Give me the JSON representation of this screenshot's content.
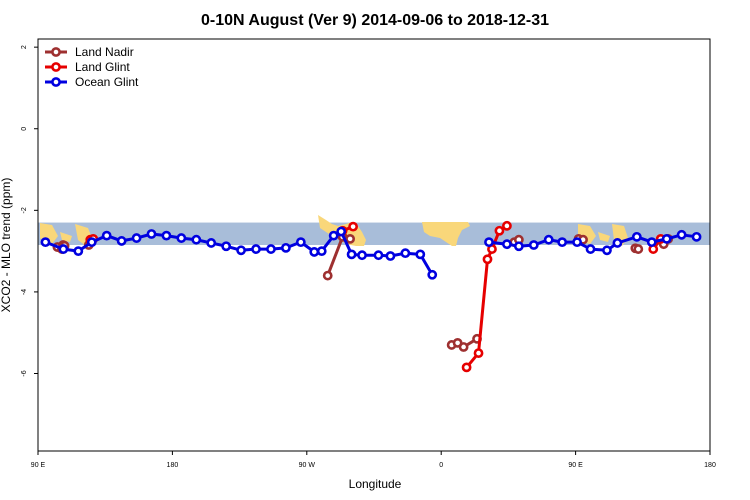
{
  "chart_data": {
    "type": "line",
    "title": "0-10N August (Ver 9)   2014-09-06 to 2018-12-31",
    "xlabel": "Longitude",
    "ylabel": "XCO2 - MLO trend (ppm)",
    "xlim": [
      90,
      540
    ],
    "ylim": [
      -7.9,
      2.2
    ],
    "x_ticks": [
      {
        "value": 90,
        "label": "90 E"
      },
      {
        "value": 180,
        "label": "180"
      },
      {
        "value": 270,
        "label": "90 W"
      },
      {
        "value": 360,
        "label": "0"
      },
      {
        "value": 450,
        "label": "90 E"
      },
      {
        "value": 540,
        "label": "180"
      }
    ],
    "y_ticks": [
      {
        "value": 2,
        "label": "2"
      },
      {
        "value": 0,
        "label": "0"
      },
      {
        "value": -2,
        "label": "-2"
      },
      {
        "value": -4,
        "label": "-4"
      },
      {
        "value": -6,
        "label": "-6"
      }
    ],
    "legend_position": "top-left",
    "background_map_band": {
      "y_top": -2.3,
      "y_bottom": -2.85,
      "ocean_color": "#a8bdd9",
      "land_color": "#f9d77a"
    },
    "series": [
      {
        "name": "Land Nadir",
        "color": "#9e3030",
        "segments": [
          [
            [
              103,
              -2.9
            ],
            [
              106,
              -2.95
            ]
          ],
          [
            [
              124,
              -2.85
            ],
            [
              126,
              -2.72
            ]
          ],
          [
            [
              284,
              -3.6
            ],
            [
              294,
              -2.65
            ],
            [
              299,
              -2.7
            ]
          ],
          [
            [
              106.8,
              -2.85
            ],
            [
              107.8,
              -2.87
            ]
          ],
          [
            [
              375,
              -5.35
            ],
            [
              384,
              -5.15
            ]
          ],
          [
            [
              367,
              -5.3
            ],
            [
              371,
              -5.25
            ]
          ],
          [
            [
              409,
              -2.78
            ],
            [
              412,
              -2.72
            ]
          ],
          [
            [
              452,
              -2.7
            ],
            [
              455,
              -2.72
            ]
          ],
          [
            [
              490,
              -2.93
            ],
            [
              492,
              -2.95
            ]
          ],
          [
            [
              509,
              -2.83
            ],
            [
              512,
              -2.7
            ]
          ]
        ]
      },
      {
        "name": "Land Glint",
        "color": "#e60000",
        "segments": [
          [
            [
              125,
              -2.72
            ],
            [
              127,
              -2.7
            ]
          ],
          [
            [
              294,
              -2.5
            ],
            [
              301,
              -2.4
            ]
          ],
          [
            [
              377,
              -5.85
            ],
            [
              385,
              -5.5
            ],
            [
              391,
              -3.2
            ],
            [
              394,
              -2.95
            ],
            [
              399,
              -2.5
            ],
            [
              404,
              -2.38
            ]
          ],
          [
            [
              502,
              -2.95
            ],
            [
              507,
              -2.7
            ]
          ]
        ]
      },
      {
        "name": "Ocean Glint",
        "color": "#0000e0",
        "segments": [
          [
            [
              95,
              -2.78
            ],
            [
              107,
              -2.95
            ],
            [
              117,
              -3.0
            ],
            [
              126,
              -2.78
            ],
            [
              136,
              -2.62
            ],
            [
              146,
              -2.75
            ],
            [
              156,
              -2.68
            ],
            [
              166,
              -2.58
            ],
            [
              176,
              -2.62
            ],
            [
              186,
              -2.68
            ],
            [
              196,
              -2.72
            ],
            [
              206,
              -2.8
            ],
            [
              216,
              -2.88
            ],
            [
              226,
              -2.98
            ],
            [
              236,
              -2.95
            ],
            [
              246,
              -2.95
            ],
            [
              256,
              -2.92
            ],
            [
              266,
              -2.78
            ],
            [
              275,
              -3.02
            ],
            [
              280,
              -3.0
            ],
            [
              288,
              -2.62
            ],
            [
              293,
              -2.52
            ],
            [
              300,
              -3.08
            ],
            [
              307,
              -3.1
            ],
            [
              318,
              -3.1
            ],
            [
              326,
              -3.12
            ],
            [
              336,
              -3.05
            ],
            [
              346,
              -3.08
            ],
            [
              354,
              -3.58
            ]
          ],
          [
            [
              392,
              -2.78
            ],
            [
              404,
              -2.83
            ],
            [
              412,
              -2.88
            ],
            [
              422,
              -2.85
            ],
            [
              432,
              -2.72
            ],
            [
              441,
              -2.78
            ],
            [
              451,
              -2.78
            ],
            [
              460,
              -2.95
            ],
            [
              471,
              -2.98
            ],
            [
              478,
              -2.8
            ],
            [
              491,
              -2.65
            ],
            [
              501,
              -2.78
            ],
            [
              511,
              -2.7
            ],
            [
              521,
              -2.6
            ],
            [
              531,
              -2.65
            ]
          ]
        ]
      }
    ]
  }
}
